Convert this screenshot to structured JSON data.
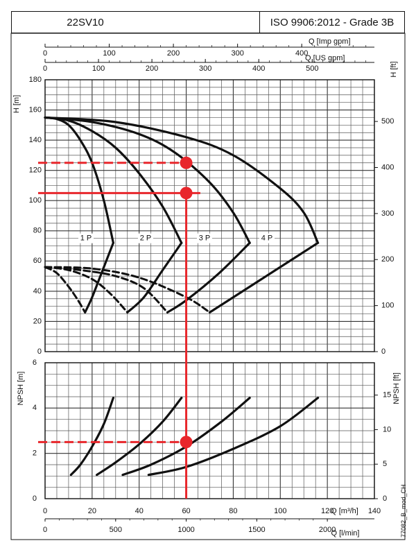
{
  "header": {
    "model": "22SV10",
    "standard": "ISO 9906:2012 - Grade 3B"
  },
  "footnote": "77082_B_mod_CH",
  "colors": {
    "curve": "#111111",
    "operating_point": "#e8262b",
    "grid_major": "#333333",
    "grid_minor": "#555555"
  },
  "chart_data": [
    {
      "type": "line",
      "panel": "head",
      "ylabel_left": "H [m]",
      "ylabel_right": "H [ft]",
      "top_axis_1_label": "Q [Imp gpm]",
      "top_axis_1_ticks": [
        "0",
        "100",
        "200",
        "300",
        "400"
      ],
      "top_axis_2_label": "Q [US gpm]",
      "top_axis_2_ticks": [
        "0",
        "100",
        "200",
        "300",
        "400",
        "500"
      ],
      "xlim": [
        0,
        140
      ],
      "ylim": [
        0,
        180
      ],
      "yticks": [
        "0",
        "20",
        "40",
        "60",
        "80",
        "100",
        "120",
        "140",
        "160",
        "180"
      ],
      "yticks_ft": [
        "0",
        "100",
        "200",
        "300",
        "400",
        "500"
      ],
      "grid": true,
      "head_curves": [
        {
          "label": "1 P",
          "points": [
            [
              0,
              155
            ],
            [
              5,
              154
            ],
            [
              10,
              150
            ],
            [
              15,
              140
            ],
            [
              20,
              125
            ],
            [
              25,
              100
            ],
            [
              29,
              72
            ]
          ]
        },
        {
          "label": "2 P",
          "points": [
            [
              0,
              155
            ],
            [
              10,
              153
            ],
            [
              20,
              146
            ],
            [
              30,
              135
            ],
            [
              40,
              118
            ],
            [
              50,
              96
            ],
            [
              58,
              72
            ]
          ]
        },
        {
          "label": "3 P",
          "points": [
            [
              0,
              155
            ],
            [
              20,
              152
            ],
            [
              40,
              144
            ],
            [
              55,
              132
            ],
            [
              70,
              112
            ],
            [
              80,
              92
            ],
            [
              87,
              72
            ]
          ]
        },
        {
          "label": "4 P",
          "points": [
            [
              0,
              155
            ],
            [
              30,
              152
            ],
            [
              60,
              142
            ],
            [
              80,
              130
            ],
            [
              100,
              108
            ],
            [
              110,
              92
            ],
            [
              116,
              72
            ]
          ]
        }
      ],
      "efficiency_curves": [
        {
          "points": [
            [
              0,
              56
            ],
            [
              5,
              52
            ],
            [
              10,
              43
            ],
            [
              14,
              34
            ],
            [
              17,
              26
            ],
            [
              20,
              36
            ],
            [
              24,
              52
            ],
            [
              29,
              72
            ]
          ]
        },
        {
          "points": [
            [
              0,
              56
            ],
            [
              10,
              54
            ],
            [
              20,
              48
            ],
            [
              28,
              38
            ],
            [
              35,
              26
            ],
            [
              42,
              36
            ],
            [
              50,
              54
            ],
            [
              58,
              72
            ]
          ]
        },
        {
          "points": [
            [
              0,
              56
            ],
            [
              15,
              54
            ],
            [
              30,
              50
            ],
            [
              42,
              42
            ],
            [
              52,
              26
            ],
            [
              60,
              34
            ],
            [
              74,
              52
            ],
            [
              87,
              72
            ]
          ]
        },
        {
          "points": [
            [
              0,
              56
            ],
            [
              20,
              55
            ],
            [
              40,
              49
            ],
            [
              60,
              36
            ],
            [
              70,
              26
            ],
            [
              80,
              36
            ],
            [
              98,
              54
            ],
            [
              116,
              72
            ]
          ]
        }
      ],
      "operating_point_upper": {
        "x": 60,
        "y": 125
      },
      "operating_point_lower": {
        "x": 60,
        "y": 105
      }
    },
    {
      "type": "line",
      "panel": "npsh",
      "ylabel_left": "NPSH [m]",
      "ylabel_right": "NPSH [ft]",
      "xlabel_1": "Q [m³/h]",
      "xticks_1": [
        "0",
        "20",
        "40",
        "60",
        "80",
        "100",
        "120",
        "140"
      ],
      "xlabel_2": "Q [l/min]",
      "xticks_2": [
        "0",
        "500",
        "1000",
        "1500",
        "2000"
      ],
      "xlim": [
        0,
        140
      ],
      "ylim": [
        0,
        6
      ],
      "yticks": [
        "0",
        "2",
        "4",
        "6"
      ],
      "yticks_ft": [
        "0",
        "5",
        "10",
        "15"
      ],
      "grid": true,
      "npsh_curves": [
        {
          "points": [
            [
              11,
              1.05
            ],
            [
              15,
              1.5
            ],
            [
              20,
              2.3
            ],
            [
              25,
              3.3
            ],
            [
              29,
              4.45
            ]
          ]
        },
        {
          "points": [
            [
              22,
              1.05
            ],
            [
              30,
              1.6
            ],
            [
              40,
              2.4
            ],
            [
              50,
              3.4
            ],
            [
              58,
              4.45
            ]
          ]
        },
        {
          "points": [
            [
              33,
              1.05
            ],
            [
              45,
              1.5
            ],
            [
              60,
              2.3
            ],
            [
              75,
              3.4
            ],
            [
              87,
              4.45
            ]
          ]
        },
        {
          "points": [
            [
              44,
              1.05
            ],
            [
              60,
              1.4
            ],
            [
              80,
              2.2
            ],
            [
              100,
              3.2
            ],
            [
              116,
              4.45
            ]
          ]
        }
      ],
      "operating_point": {
        "x": 60,
        "y": 2.5
      }
    }
  ]
}
